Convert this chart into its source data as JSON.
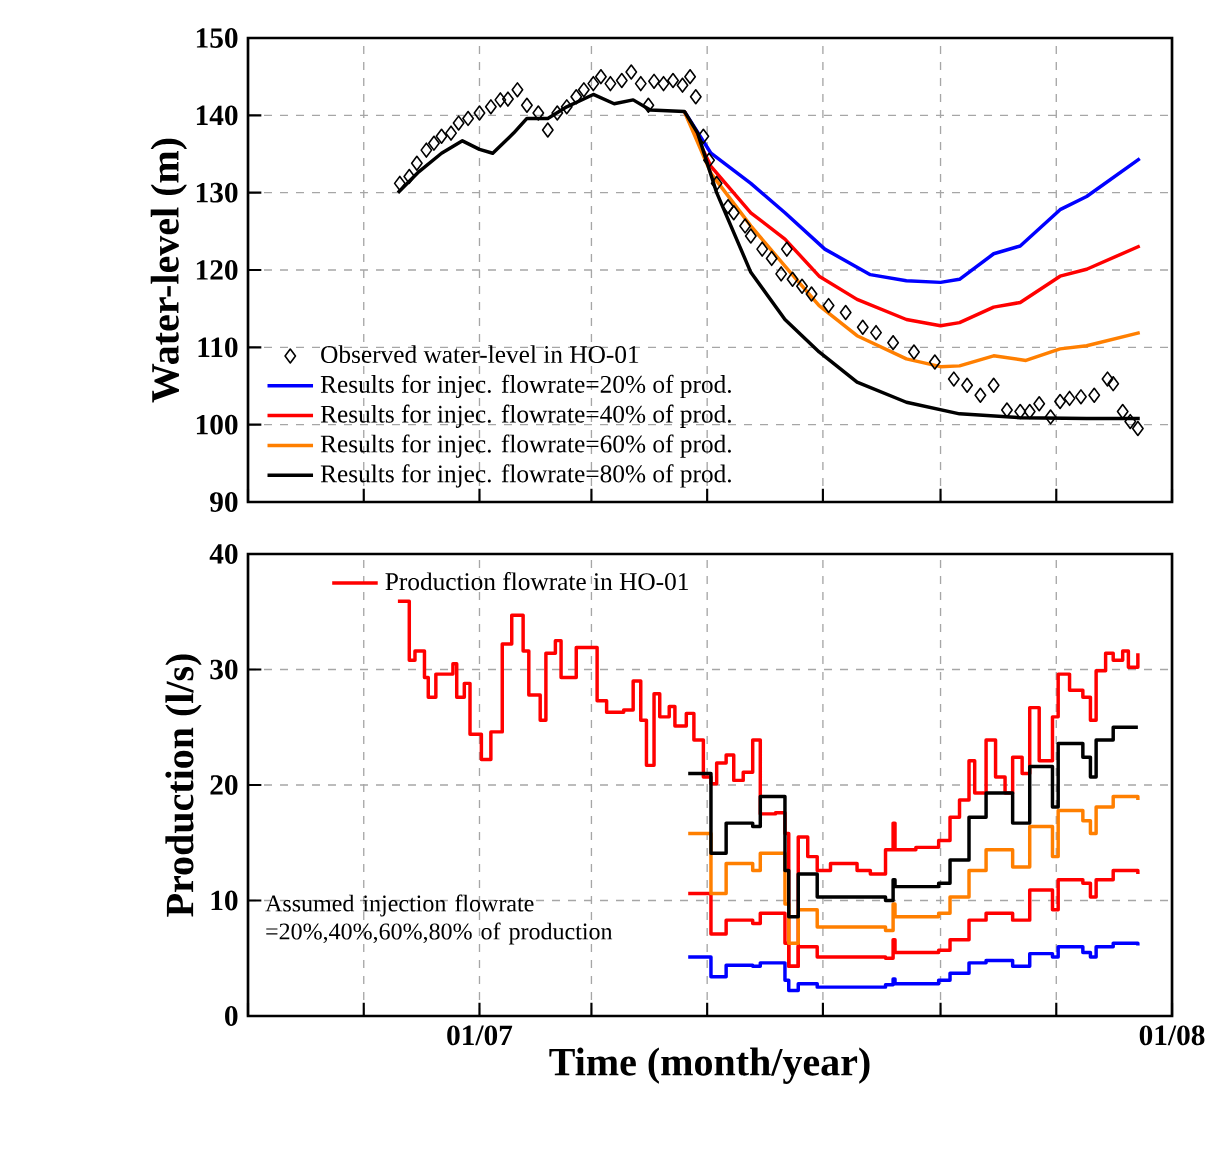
{
  "chart_data": [
    {
      "type": "line",
      "ylabel": "Water-level (m)",
      "xlim": [
        "2006-09-01",
        "2008-01-01"
      ],
      "ylim": [
        90,
        150
      ],
      "yticks": [
        90,
        100,
        110,
        120,
        130,
        140,
        150
      ],
      "xticks": [
        {
          "value": "2006-09-01",
          "label": null
        },
        {
          "value": "2006-11-01",
          "label": null
        },
        {
          "value": "2007-01-01",
          "label": null
        },
        {
          "value": "2007-03-01",
          "label": null
        },
        {
          "value": "2007-05-01",
          "label": null
        },
        {
          "value": "2007-07-01",
          "label": null
        },
        {
          "value": "2007-09-01",
          "label": null
        },
        {
          "value": "2007-11-01",
          "label": null
        },
        {
          "value": "2008-01-01",
          "label": null
        }
      ],
      "tick_labels": "y",
      "grid": true,
      "legend": "bottom left",
      "series": [
        {
          "name": "Observed water-level in HO-01",
          "type": "scatter",
          "marker": "diamond",
          "color": "#000000",
          "x": [
            "2006-11-20",
            "2006-11-25",
            "2006-11-29",
            "2006-12-04",
            "2006-12-08",
            "2006-12-12",
            "2006-12-17",
            "2006-12-21",
            "2006-12-26",
            "2007-01-01",
            "2007-01-07",
            "2007-01-12",
            "2007-01-16",
            "2007-01-21",
            "2007-01-26",
            "2007-02-01",
            "2007-02-06",
            "2007-02-11",
            "2007-02-16",
            "2007-02-21",
            "2007-02-25",
            "2007-03-02",
            "2007-03-06",
            "2007-03-11",
            "2007-03-17",
            "2007-03-22",
            "2007-03-27",
            "2007-03-31",
            "2007-04-03",
            "2007-04-08",
            "2007-04-13",
            "2007-04-18",
            "2007-04-22",
            "2007-04-25",
            "2007-04-29",
            "2007-05-02",
            "2007-05-06",
            "2007-05-12",
            "2007-05-15",
            "2007-05-21",
            "2007-05-24",
            "2007-05-30",
            "2007-06-04",
            "2007-06-09",
            "2007-06-12",
            "2007-06-15",
            "2007-06-20",
            "2007-06-25",
            "2007-07-04",
            "2007-07-13",
            "2007-07-22",
            "2007-07-29",
            "2007-08-07",
            "2007-08-18",
            "2007-08-29",
            "2007-09-08",
            "2007-09-15",
            "2007-09-22",
            "2007-09-29",
            "2007-10-06",
            "2007-10-13",
            "2007-10-18",
            "2007-10-23",
            "2007-10-29",
            "2007-11-03",
            "2007-11-08",
            "2007-11-14",
            "2007-11-21",
            "2007-11-28",
            "2007-12-01",
            "2007-12-06",
            "2007-12-10",
            "2007-12-14"
          ],
          "values": [
            131.2,
            132.1,
            133.8,
            135.5,
            136.4,
            137.3,
            137.7,
            139,
            139.6,
            140.3,
            141.1,
            142,
            142.1,
            143.3,
            141.3,
            140.3,
            138.1,
            140.3,
            141.1,
            142.4,
            143.3,
            144.1,
            145,
            144.1,
            144.5,
            145.6,
            144.1,
            141.3,
            144.4,
            144.1,
            144.5,
            143.9,
            145,
            142.4,
            137.3,
            134.2,
            131.2,
            128.2,
            127.4,
            125.7,
            124.4,
            122.7,
            121.5,
            119.5,
            122.7,
            118.8,
            117.9,
            116.9,
            115.4,
            114.5,
            112.6,
            111.9,
            110.6,
            109.4,
            108.1,
            105.9,
            105.1,
            103.8,
            105.1,
            101.9,
            101.7,
            101.7,
            102.7,
            101,
            103,
            103.4,
            103.6,
            103.8,
            105.9,
            105.3,
            101.7,
            100.4,
            99.5
          ]
        },
        {
          "name": "Results for injec. flowrate=20% of prod.",
          "color": "#0000ff",
          "x": [
            "2007-04-19",
            "2007-05-03",
            "2007-05-24",
            "2007-06-11",
            "2007-07-02",
            "2007-07-26",
            "2007-08-14",
            "2007-09-01",
            "2007-09-11",
            "2007-09-29",
            "2007-10-13",
            "2007-11-03",
            "2007-11-17",
            "2007-12-15"
          ],
          "values": [
            140.5,
            135.1,
            131.2,
            127.4,
            122.7,
            119.4,
            118.6,
            118.4,
            118.8,
            122.1,
            123.1,
            127.8,
            129.5,
            134.4
          ]
        },
        {
          "name": "Results for injec. flowrate=40% of prod.",
          "color": "#ff0000",
          "x": [
            "2007-04-19",
            "2007-05-03",
            "2007-05-24",
            "2007-06-11",
            "2007-06-29",
            "2007-07-19",
            "2007-08-14",
            "2007-09-01",
            "2007-09-11",
            "2007-09-29",
            "2007-10-13",
            "2007-11-03",
            "2007-11-17",
            "2007-12-15"
          ],
          "values": [
            140.5,
            133.4,
            127.4,
            124,
            119.2,
            116.2,
            113.6,
            112.8,
            113.2,
            115.2,
            115.8,
            119.2,
            120.1,
            123.1
          ]
        },
        {
          "name": "Results for injec. flowrate=60% of prod.",
          "color": "#ff7f00",
          "x": [
            "2007-04-19",
            "2007-05-03",
            "2007-05-24",
            "2007-06-11",
            "2007-06-29",
            "2007-07-19",
            "2007-08-14",
            "2007-09-01",
            "2007-09-11",
            "2007-09-29",
            "2007-10-16",
            "2007-11-03",
            "2007-11-17",
            "2007-12-15"
          ],
          "values": [
            140.5,
            132.5,
            125.7,
            120.5,
            115.4,
            111.5,
            108.5,
            107.5,
            107.6,
            108.9,
            108.3,
            109.8,
            110.2,
            111.9
          ]
        },
        {
          "name": "Results for injec. flowrate=80% of prod.",
          "color": "#000000",
          "x": [
            "2006-11-19",
            "2006-11-30",
            "2006-12-12",
            "2006-12-23",
            "2007-01-01",
            "2007-01-08",
            "2007-01-19",
            "2007-01-26",
            "2007-02-06",
            "2007-02-16",
            "2007-03-02",
            "2007-03-13",
            "2007-03-23",
            "2007-04-01",
            "2007-04-19",
            "2007-04-26",
            "2007-05-06",
            "2007-05-24",
            "2007-06-11",
            "2007-06-29",
            "2007-07-19",
            "2007-08-14",
            "2007-09-11",
            "2007-10-13",
            "2007-11-17",
            "2007-12-15"
          ],
          "values": [
            130,
            132.7,
            135.1,
            136.7,
            135.6,
            135.1,
            137.7,
            139.6,
            139.6,
            141.1,
            142.7,
            141.5,
            142,
            140.7,
            140.5,
            137.7,
            130,
            119.7,
            113.6,
            109.4,
            105.5,
            102.9,
            101.4,
            100.9,
            100.8,
            100.8
          ]
        }
      ]
    },
    {
      "type": "step",
      "xlabel": "Time (month/year)",
      "ylabel": "Production (l/s)",
      "xlim": [
        "2006-09-01",
        "2008-01-01"
      ],
      "ylim": [
        0,
        40
      ],
      "yticks": [
        0,
        10,
        20,
        30,
        40
      ],
      "xticks": [
        {
          "value": "2006-09-01",
          "label": null
        },
        {
          "value": "2006-11-01",
          "label": null
        },
        {
          "value": "2007-01-01",
          "label": "01/07"
        },
        {
          "value": "2007-03-01",
          "label": null
        },
        {
          "value": "2007-05-01",
          "label": null
        },
        {
          "value": "2007-07-01",
          "label": null
        },
        {
          "value": "2007-09-01",
          "label": null
        },
        {
          "value": "2007-11-01",
          "label": null
        },
        {
          "value": "2008-01-01",
          "label": "01/08"
        }
      ],
      "grid": true,
      "legend": "top left",
      "annotations": [
        "Assumed injection flowrate =20%,40%,60%,80% of production"
      ],
      "series": [
        {
          "name": "Production flowrate in  HO-01",
          "color": "#ff0000",
          "x": [
            "2006-11-19",
            "2006-11-25",
            "2006-11-28",
            "2006-12-03",
            "2006-12-05",
            "2006-12-09",
            "2006-12-18",
            "2006-12-20",
            "2006-12-24",
            "2006-12-27",
            "2007-01-02",
            "2007-01-07",
            "2007-01-13",
            "2007-01-18",
            "2007-01-24",
            "2007-01-27",
            "2007-02-02",
            "2007-02-05",
            "2007-02-10",
            "2007-02-13",
            "2007-02-21",
            "2007-02-28",
            "2007-03-04",
            "2007-03-09",
            "2007-03-18",
            "2007-03-23",
            "2007-03-27",
            "2007-03-30",
            "2007-04-03",
            "2007-04-06",
            "2007-04-11",
            "2007-04-14",
            "2007-04-20",
            "2007-04-24",
            "2007-04-29",
            "2007-05-03",
            "2007-05-06",
            "2007-05-11",
            "2007-05-15",
            "2007-05-20",
            "2007-05-25",
            "2007-05-29",
            "2007-06-06",
            "2007-06-11",
            "2007-06-13",
            "2007-06-18",
            "2007-06-23",
            "2007-06-28",
            "2007-07-05",
            "2007-07-12",
            "2007-07-19",
            "2007-07-26",
            "2007-08-03",
            "2007-08-07",
            "2007-08-08",
            "2007-08-19",
            "2007-08-31",
            "2007-09-06",
            "2007-09-11",
            "2007-09-16",
            "2007-09-19",
            "2007-09-25",
            "2007-09-30",
            "2007-10-05",
            "2007-10-09",
            "2007-10-14",
            "2007-10-18",
            "2007-10-23",
            "2007-10-30",
            "2007-11-02",
            "2007-11-08",
            "2007-11-15",
            "2007-11-19",
            "2007-11-22",
            "2007-11-27",
            "2007-12-01",
            "2007-12-06",
            "2007-12-09",
            "2007-12-14"
          ],
          "values": [
            35.9,
            30.8,
            31.6,
            29.3,
            27.6,
            29.6,
            30.5,
            27.6,
            28.8,
            24.4,
            22.2,
            24.6,
            32.2,
            34.7,
            31.6,
            27.8,
            25.6,
            31.4,
            32.5,
            29.3,
            31.9,
            31.9,
            27.3,
            26.3,
            26.5,
            29,
            25.6,
            21.7,
            27.9,
            25.9,
            26.8,
            25.1,
            26.2,
            23.9,
            20.7,
            20.1,
            21.9,
            22.6,
            20.4,
            21.1,
            23.9,
            17.5,
            17.6,
            15.8,
            4.3,
            15.5,
            13.8,
            12.6,
            13.2,
            13.2,
            12.6,
            12.3,
            14.4,
            16.7,
            14.4,
            14.6,
            15.2,
            17.2,
            18.7,
            22.1,
            19.3,
            23.9,
            20.7,
            19.3,
            22.4,
            21,
            26.7,
            22.1,
            25.9,
            29.6,
            28.2,
            27.6,
            25.6,
            29.9,
            31.4,
            30.8,
            31.6,
            30.2,
            31.4
          ]
        },
        {
          "color": "#0000ff",
          "x": [
            "2007-04-21",
            "2007-05-03",
            "2007-05-11",
            "2007-05-25",
            "2007-05-29",
            "2007-06-11",
            "2007-06-13",
            "2007-06-18",
            "2007-06-28",
            "2007-07-19",
            "2007-08-03",
            "2007-08-07",
            "2007-08-08",
            "2007-08-31",
            "2007-09-06",
            "2007-09-16",
            "2007-09-25",
            "2007-10-09",
            "2007-10-18",
            "2007-10-30",
            "2007-11-02",
            "2007-11-15",
            "2007-11-19",
            "2007-11-22",
            "2007-12-01",
            "2007-12-14"
          ],
          "values": [
            5.1,
            3.4,
            4.4,
            4.3,
            4.6,
            3.1,
            2.2,
            2.8,
            2.5,
            2.5,
            2.7,
            3.2,
            2.8,
            3.1,
            3.7,
            4.6,
            4.8,
            4.3,
            5.4,
            5.1,
            6,
            5.5,
            5.1,
            6,
            6.3,
            6.1
          ]
        },
        {
          "color": "#ff0000",
          "x": [
            "2007-04-21",
            "2007-05-03",
            "2007-05-11",
            "2007-05-25",
            "2007-05-29",
            "2007-06-11",
            "2007-06-13",
            "2007-06-18",
            "2007-06-28",
            "2007-07-19",
            "2007-08-03",
            "2007-08-07",
            "2007-08-08",
            "2007-08-31",
            "2007-09-06",
            "2007-09-16",
            "2007-09-25",
            "2007-10-09",
            "2007-10-18",
            "2007-10-30",
            "2007-11-02",
            "2007-11-15",
            "2007-11-19",
            "2007-11-22",
            "2007-12-01",
            "2007-12-14"
          ],
          "values": [
            10.6,
            7.1,
            8.3,
            8,
            8.9,
            6.3,
            4.3,
            6,
            5.1,
            5.1,
            5,
            6.6,
            5.5,
            5.7,
            6.6,
            8.3,
            8.9,
            8.3,
            10.9,
            9.2,
            11.8,
            11.5,
            10.3,
            11.8,
            12.6,
            12.3
          ]
        },
        {
          "color": "#ff7f00",
          "x": [
            "2007-04-21",
            "2007-05-03",
            "2007-05-11",
            "2007-05-25",
            "2007-05-29",
            "2007-06-11",
            "2007-06-13",
            "2007-06-18",
            "2007-06-28",
            "2007-07-19",
            "2007-08-03",
            "2007-08-07",
            "2007-08-08",
            "2007-08-31",
            "2007-09-06",
            "2007-09-16",
            "2007-09-25",
            "2007-10-09",
            "2007-10-18",
            "2007-10-30",
            "2007-11-02",
            "2007-11-15",
            "2007-11-19",
            "2007-11-22",
            "2007-12-01",
            "2007-12-14"
          ],
          "values": [
            15.8,
            10.6,
            13.2,
            12.6,
            14.1,
            9.7,
            6.3,
            9.2,
            7.7,
            7.7,
            7.4,
            9.7,
            8.6,
            8.9,
            10.3,
            12.6,
            14.4,
            12.9,
            16.4,
            13.8,
            17.8,
            16.9,
            15.8,
            18.1,
            19,
            18.7
          ]
        },
        {
          "color": "#000000",
          "x": [
            "2007-04-21",
            "2007-05-03",
            "2007-05-11",
            "2007-05-25",
            "2007-05-29",
            "2007-06-11",
            "2007-06-13",
            "2007-06-18",
            "2007-06-28",
            "2007-07-19",
            "2007-08-03",
            "2007-08-07",
            "2007-08-08",
            "2007-08-31",
            "2007-09-06",
            "2007-09-16",
            "2007-09-25",
            "2007-10-09",
            "2007-10-18",
            "2007-10-30",
            "2007-11-02",
            "2007-11-15",
            "2007-11-19",
            "2007-11-22",
            "2007-12-01",
            "2007-12-14"
          ],
          "values": [
            21,
            14.1,
            16.7,
            16.4,
            19,
            12.6,
            8.6,
            12.3,
            10.3,
            10.3,
            10,
            11.8,
            11.2,
            11.5,
            13.5,
            17.2,
            19.3,
            16.7,
            21.6,
            18.1,
            23.6,
            22.4,
            20.7,
            23.9,
            25,
            25
          ]
        }
      ]
    }
  ]
}
